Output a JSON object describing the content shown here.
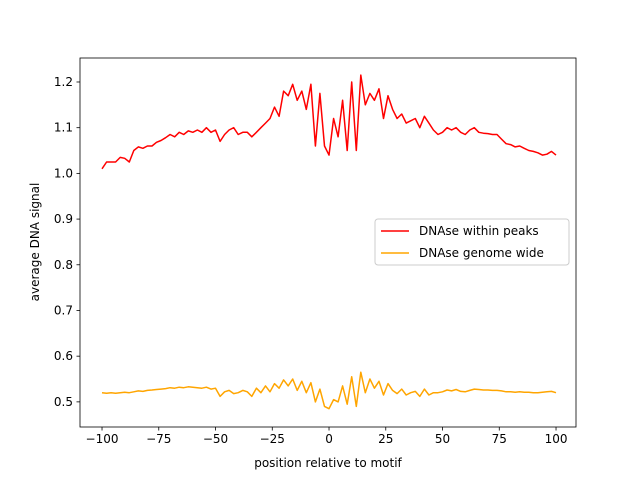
{
  "chart_data": {
    "type": "line",
    "title": "",
    "xlabel": "position relative to motif",
    "ylabel": "average DNA signal",
    "xlim": [
      -109.7,
      108.8
    ],
    "ylim": [
      0.445,
      1.2525
    ],
    "xticks": [
      -100,
      -75,
      -50,
      -25,
      0,
      25,
      50,
      75,
      100
    ],
    "yticks": [
      0.5,
      0.6,
      0.7,
      0.8,
      0.9,
      1.0,
      1.1,
      1.2
    ],
    "ytick_labels": [
      "0.5",
      "0.6",
      "0.7",
      "0.8",
      "0.9",
      "1.0",
      "1.1",
      "1.2"
    ],
    "grid": false,
    "legend_placement": "center-right",
    "x_start": -100,
    "x_step": 2,
    "series": [
      {
        "name": "DNAse within peaks",
        "color": "#ff0000",
        "values": [
          1.01,
          1.025,
          1.025,
          1.025,
          1.035,
          1.033,
          1.025,
          1.05,
          1.058,
          1.055,
          1.06,
          1.06,
          1.068,
          1.072,
          1.078,
          1.085,
          1.08,
          1.09,
          1.085,
          1.093,
          1.09,
          1.095,
          1.09,
          1.1,
          1.09,
          1.095,
          1.07,
          1.085,
          1.095,
          1.1,
          1.085,
          1.09,
          1.09,
          1.08,
          1.09,
          1.1,
          1.11,
          1.12,
          1.145,
          1.125,
          1.18,
          1.17,
          1.195,
          1.16,
          1.18,
          1.14,
          1.195,
          1.06,
          1.175,
          1.06,
          1.04,
          1.12,
          1.08,
          1.16,
          1.05,
          1.2,
          1.05,
          1.215,
          1.15,
          1.175,
          1.16,
          1.185,
          1.12,
          1.17,
          1.14,
          1.12,
          1.13,
          1.11,
          1.115,
          1.12,
          1.1,
          1.125,
          1.11,
          1.095,
          1.085,
          1.09,
          1.1,
          1.095,
          1.1,
          1.09,
          1.085,
          1.095,
          1.1,
          1.09,
          1.088,
          1.087,
          1.085,
          1.085,
          1.075,
          1.065,
          1.063,
          1.058,
          1.06,
          1.055,
          1.05,
          1.048,
          1.045,
          1.04,
          1.042,
          1.048,
          1.04
        ]
      },
      {
        "name": "DNAse genome wide",
        "color": "#ffa500",
        "values": [
          0.52,
          0.519,
          0.52,
          0.519,
          0.52,
          0.521,
          0.52,
          0.522,
          0.524,
          0.523,
          0.525,
          0.526,
          0.527,
          0.528,
          0.529,
          0.531,
          0.53,
          0.532,
          0.531,
          0.533,
          0.532,
          0.531,
          0.53,
          0.532,
          0.528,
          0.53,
          0.512,
          0.522,
          0.525,
          0.518,
          0.52,
          0.525,
          0.522,
          0.512,
          0.53,
          0.52,
          0.535,
          0.522,
          0.54,
          0.53,
          0.548,
          0.535,
          0.55,
          0.525,
          0.545,
          0.52,
          0.542,
          0.5,
          0.528,
          0.49,
          0.485,
          0.505,
          0.5,
          0.535,
          0.495,
          0.555,
          0.49,
          0.565,
          0.52,
          0.55,
          0.53,
          0.545,
          0.515,
          0.54,
          0.525,
          0.518,
          0.528,
          0.515,
          0.52,
          0.523,
          0.512,
          0.528,
          0.515,
          0.52,
          0.52,
          0.522,
          0.526,
          0.524,
          0.527,
          0.523,
          0.522,
          0.525,
          0.528,
          0.527,
          0.526,
          0.526,
          0.525,
          0.525,
          0.524,
          0.522,
          0.522,
          0.521,
          0.522,
          0.521,
          0.521,
          0.52,
          0.52,
          0.521,
          0.522,
          0.523,
          0.52
        ]
      }
    ]
  }
}
